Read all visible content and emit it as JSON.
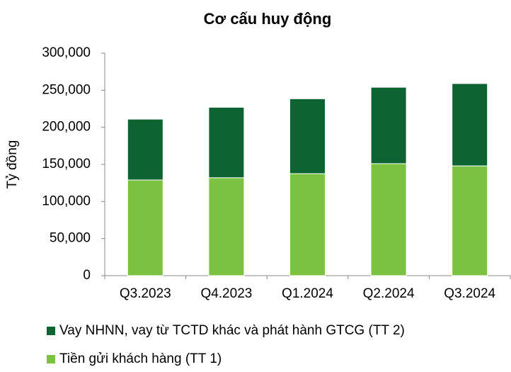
{
  "chart_data": {
    "type": "stacked_bar",
    "title": "Cơ cấu huy động",
    "y_label": "Tỷ đồng",
    "categories": [
      "Q3.2023",
      "Q4.2023",
      "Q1.2024",
      "Q2.2024",
      "Q3.2024"
    ],
    "series": [
      {
        "name": "Vay NHNN, vay từ TCTD khác và phát hành GTCG (TT 2)",
        "color": "#0d6332",
        "values": [
          82000,
          95000,
          101000,
          103000,
          111000
        ]
      },
      {
        "name": "Tiền gửi khách hàng (TT 1)",
        "color": "#7cc242",
        "values": [
          129000,
          132000,
          137500,
          151000,
          148000
        ]
      }
    ],
    "ylim": [
      0,
      300000
    ],
    "yticks": [
      {
        "value": 0,
        "label": "0"
      },
      {
        "value": 50000,
        "label": "50,000"
      },
      {
        "value": 100000,
        "label": "100,000"
      },
      {
        "value": 150000,
        "label": "150,000"
      },
      {
        "value": 200000,
        "label": "200,000"
      },
      {
        "value": 250000,
        "label": "250,000"
      },
      {
        "value": 300000,
        "label": "300,000"
      }
    ]
  }
}
